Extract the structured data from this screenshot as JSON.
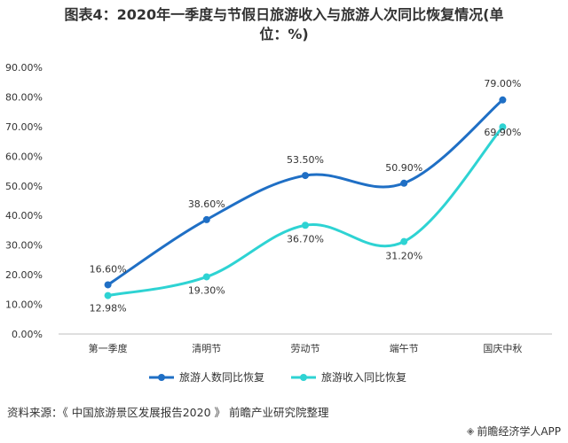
{
  "title_line1": "图表4：2020年一季度与节假日旅游收入与旅游人次同比恢复情况(单",
  "title_line2": "位：%)",
  "source": "资料来源：《 中国旅游景区发展报告2020 》 前瞻产业研究院整理",
  "brand": "前瞻经济学人APP",
  "chart_data": {
    "type": "line",
    "title": "图表4：2020年一季度与节假日旅游收入与旅游人次同比恢复情况(单位：%)",
    "categories": [
      "第一季度",
      "清明节",
      "劳动节",
      "端午节",
      "国庆中秋"
    ],
    "y_ticks": [
      "0.00%",
      "10.00%",
      "20.00%",
      "30.00%",
      "40.00%",
      "50.00%",
      "60.00%",
      "70.00%",
      "80.00%",
      "90.00%"
    ],
    "ylim": [
      0,
      90
    ],
    "grid": false,
    "legend_position": "bottom",
    "series": [
      {
        "name": "旅游人数同比恢复",
        "color": "#1f6fc5",
        "values": [
          16.6,
          38.6,
          53.5,
          50.9,
          79.0
        ],
        "labels": [
          "16.60%",
          "38.60%",
          "53.50%",
          "50.90%",
          "79.00%"
        ]
      },
      {
        "name": "旅游收入同比恢复",
        "color": "#2ed3d3",
        "values": [
          12.98,
          19.3,
          36.7,
          31.2,
          69.9
        ],
        "labels": [
          "12.98%",
          "19.30%",
          "36.70%",
          "31.20%",
          "69.90%"
        ]
      }
    ]
  }
}
